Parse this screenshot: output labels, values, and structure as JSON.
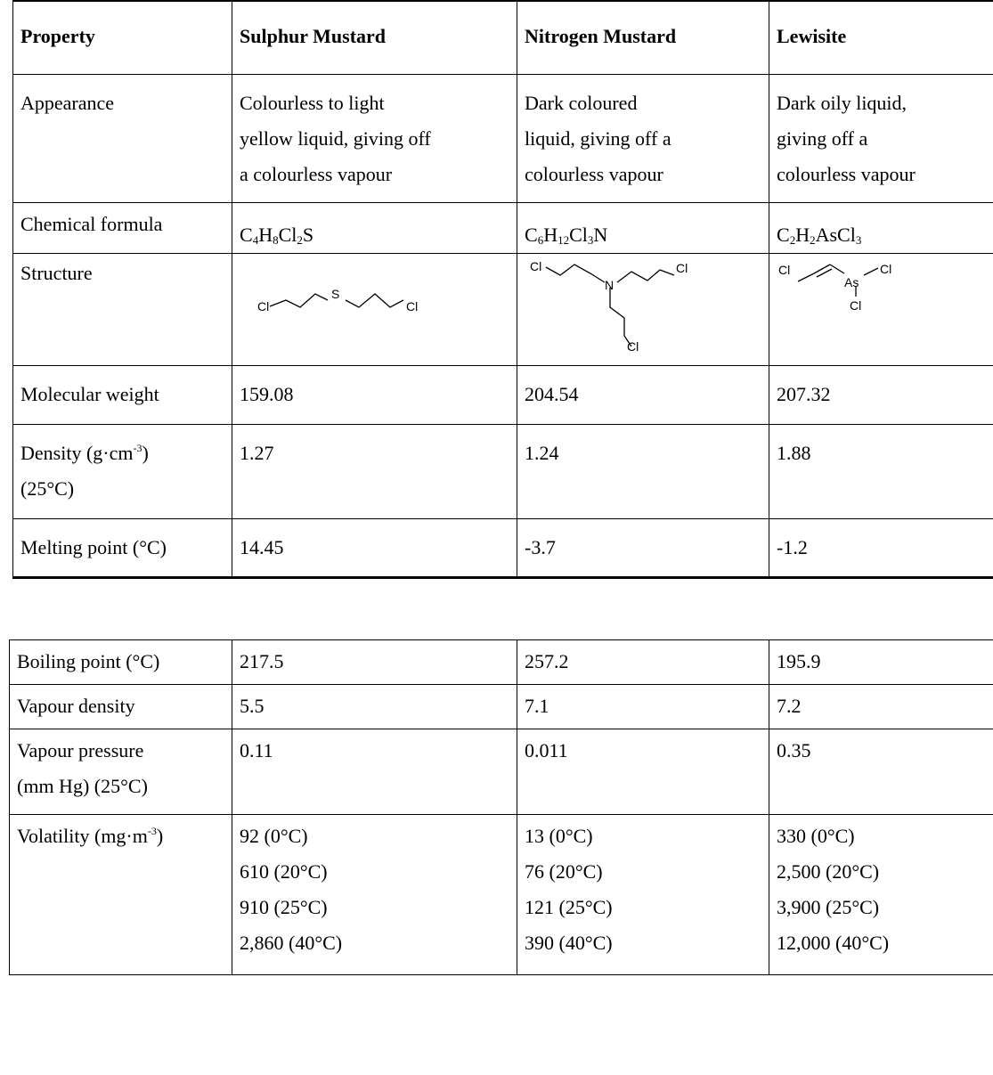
{
  "headers": {
    "property": "Property",
    "sulphur": "Sulphur Mustard",
    "nitrogen": "Nitrogen Mustard",
    "lewisite": "Lewisite"
  },
  "appearance": {
    "label": "Appearance",
    "sulphur": [
      "Colourless to light",
      "yellow liquid, giving off",
      "a colourless vapour"
    ],
    "nitrogen": [
      "Dark coloured",
      "liquid, giving off a",
      "colourless vapour"
    ],
    "lewisite": [
      "Dark oily liquid,",
      "giving off a",
      "colourless vapour"
    ]
  },
  "formula": {
    "label": "Chemical formula",
    "sulphur": {
      "c": "C",
      "c_n": "4",
      "h": "H",
      "h_n": "8",
      "cl": "Cl",
      "cl_n": "2",
      "s": "S"
    },
    "nitrogen": {
      "c": "C",
      "c_n": "6",
      "h": "H",
      "h_n": "12",
      "cl": "Cl",
      "cl_n": "3",
      "n": "N"
    },
    "lewisite": {
      "c": "C",
      "c_n": "2",
      "h": "H",
      "h_n": "2",
      "ascl": "AsCl",
      "ascl_n": "3"
    }
  },
  "structure": {
    "label": "Structure",
    "sulphur_atoms": {
      "cl_left": "Cl",
      "s": "S",
      "cl_right": "Cl"
    },
    "nitrogen_atoms": {
      "cl_left": "Cl",
      "n": "N",
      "cl_right": "Cl",
      "cl_bottom": "Cl"
    },
    "lewisite_atoms": {
      "cl_left": "Cl",
      "as": "As",
      "cl_right": "Cl",
      "cl_bottom": "Cl"
    }
  },
  "mw": {
    "label": "Molecular weight",
    "sulphur": "159.08",
    "nitrogen": "204.54",
    "lewisite": "207.32"
  },
  "density": {
    "label_a": "Density (g·cm",
    "label_sup": "-3",
    "label_b": ")",
    "label_line2": "(25°C)",
    "sulphur": "1.27",
    "nitrogen": "1.24",
    "lewisite": "1.88"
  },
  "melting": {
    "label": "Melting point (°C)",
    "sulphur": "14.45",
    "nitrogen": "-3.7",
    "lewisite": "-1.2"
  },
  "boiling": {
    "label": "Boiling point (°C)",
    "sulphur": "217.5",
    "nitrogen": "257.2",
    "lewisite": "195.9"
  },
  "vapour_density": {
    "label": "Vapour density",
    "sulphur": "5.5",
    "nitrogen": "7.1",
    "lewisite": "7.2"
  },
  "vapour_pressure": {
    "label_line1": "Vapour pressure",
    "label_line2": "(mm Hg) (25°C)",
    "sulphur": "0.11",
    "nitrogen": "0.011",
    "lewisite": "0.35"
  },
  "volatility": {
    "label_a": "Volatility (mg·m",
    "label_sup": "-3",
    "label_b": ")",
    "sulphur": [
      "92 (0°C)",
      "610 (20°C)",
      "910 (25°C)",
      "2,860 (40°C)"
    ],
    "nitrogen": [
      "13 (0°C)",
      "76 (20°C)",
      "121 (25°C)",
      "390 (40°C)"
    ],
    "lewisite": [
      "330 (0°C)",
      "2,500 (20°C)",
      "3,900 (25°C)",
      "12,000 (40°C)"
    ]
  }
}
